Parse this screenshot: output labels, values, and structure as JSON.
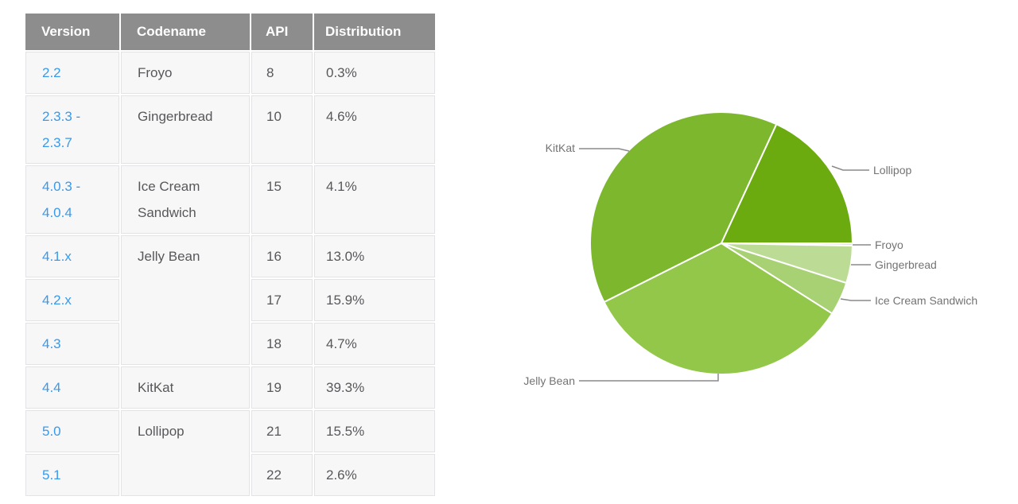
{
  "table": {
    "headers": [
      "Version",
      "Codename",
      "API",
      "Distribution"
    ],
    "rows": [
      {
        "version_lines": [
          "2.2"
        ],
        "codename": "Froyo",
        "codename_rowspan": 1,
        "api": "8",
        "distribution": "0.3%"
      },
      {
        "version_lines": [
          "2.3.3 -",
          "2.3.7"
        ],
        "codename": "Gingerbread",
        "codename_rowspan": 1,
        "api": "10",
        "distribution": "4.6%"
      },
      {
        "version_lines": [
          "4.0.3 -",
          "4.0.4"
        ],
        "codename": "Ice Cream Sandwich",
        "codename_rowspan": 1,
        "api": "15",
        "distribution": "4.1%"
      },
      {
        "version_lines": [
          "4.1.x"
        ],
        "codename": "Jelly Bean",
        "codename_rowspan": 3,
        "api": "16",
        "distribution": "13.0%"
      },
      {
        "version_lines": [
          "4.2.x"
        ],
        "api": "17",
        "distribution": "15.9%"
      },
      {
        "version_lines": [
          "4.3"
        ],
        "api": "18",
        "distribution": "4.7%"
      },
      {
        "version_lines": [
          "4.4"
        ],
        "codename": "KitKat",
        "codename_rowspan": 1,
        "api": "19",
        "distribution": "39.3%"
      },
      {
        "version_lines": [
          "5.0"
        ],
        "codename": "Lollipop",
        "codename_rowspan": 2,
        "api": "21",
        "distribution": "15.5%"
      },
      {
        "version_lines": [
          "5.1"
        ],
        "api": "22",
        "distribution": "2.6%"
      }
    ],
    "version_link_color": "#3b99e9",
    "header_bg_color": "#8d8d8d"
  },
  "chart_data": {
    "type": "pie",
    "start_angle_deg": 0,
    "direction": "clockwise",
    "slice_border_color": "#ffffff",
    "label_style": "callout-lines",
    "slices": [
      {
        "label": "Froyo",
        "value": 0.3,
        "color": "#dcedc8"
      },
      {
        "label": "Gingerbread",
        "value": 4.6,
        "color": "#bcdc96"
      },
      {
        "label": "Ice Cream Sandwich",
        "value": 4.1,
        "color": "#a7d173"
      },
      {
        "label": "Jelly Bean",
        "value": 33.6,
        "color": "#92c74a"
      },
      {
        "label": "KitKat",
        "value": 39.3,
        "color": "#7cb72e"
      },
      {
        "label": "Lollipop",
        "value": 18.1,
        "color": "#6cab10"
      }
    ]
  }
}
